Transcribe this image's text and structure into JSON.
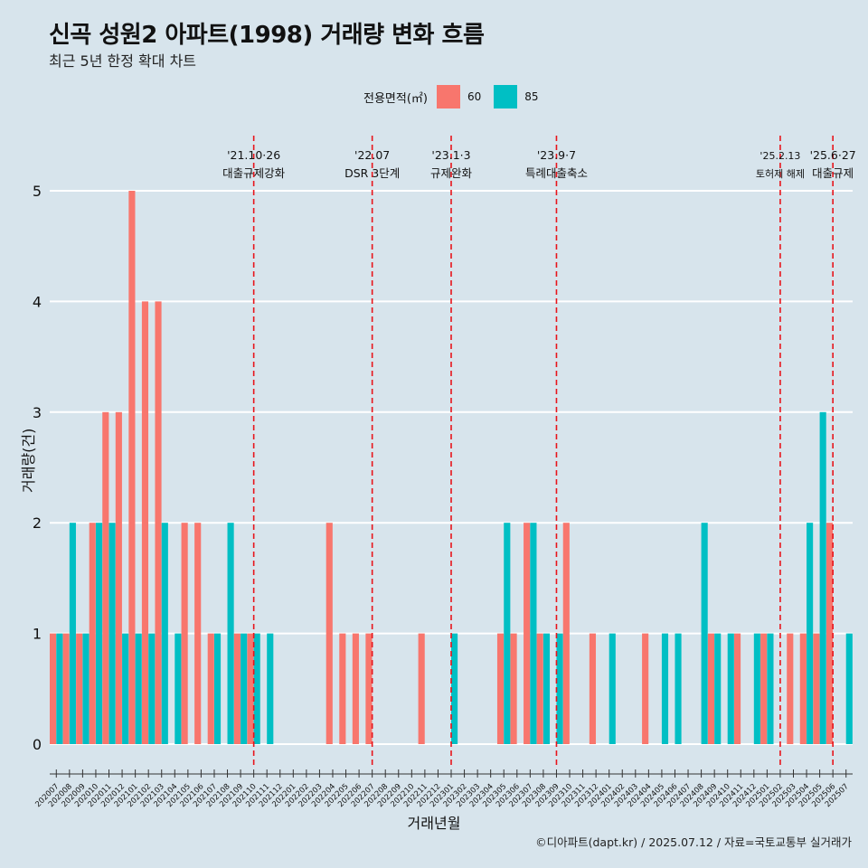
{
  "title": "신곡 성원2 아파트(1998) 거래량 변화 흐름",
  "subtitle": "최근 5년 한정 확대 차트",
  "legend": {
    "title": "전용면적(㎡)",
    "items": [
      {
        "label": "60",
        "color": "#f8766d"
      },
      {
        "label": "85",
        "color": "#00bfc4"
      }
    ]
  },
  "caption": "©디아파트(dapt.kr) / 2025.07.12 / 자료=국토교통부 실거래가",
  "chart_data": {
    "type": "bar",
    "xlabel": "거래년월",
    "ylabel": "거래량(건)",
    "ylim": [
      0,
      5
    ],
    "yticks": [
      0,
      1,
      2,
      3,
      4,
      5
    ],
    "categories": [
      "202007",
      "202008",
      "202009",
      "202010",
      "202011",
      "202012",
      "202101",
      "202102",
      "202103",
      "202104",
      "202105",
      "202106",
      "202107",
      "202108",
      "202109",
      "202110",
      "202111",
      "202112",
      "202201",
      "202202",
      "202203",
      "202204",
      "202205",
      "202206",
      "202207",
      "202208",
      "202209",
      "202210",
      "202211",
      "202212",
      "202301",
      "202302",
      "202303",
      "202304",
      "202305",
      "202306",
      "202307",
      "202308",
      "202309",
      "202310",
      "202311",
      "202312",
      "202401",
      "202402",
      "202403",
      "202404",
      "202405",
      "202406",
      "202407",
      "202408",
      "202409",
      "202410",
      "202411",
      "202412",
      "202501",
      "202502",
      "202503",
      "202504",
      "202505",
      "202506",
      "202507"
    ],
    "series": [
      {
        "name": "60",
        "color": "#f8766d",
        "values": [
          1,
          1,
          1,
          2,
          3,
          3,
          5,
          4,
          4,
          0,
          2,
          2,
          1,
          0,
          1,
          1,
          0,
          0,
          0,
          0,
          0,
          2,
          1,
          1,
          1,
          0,
          0,
          0,
          1,
          0,
          0,
          0,
          0,
          0,
          1,
          1,
          2,
          1,
          0,
          2,
          0,
          1,
          0,
          0,
          0,
          1,
          0,
          0,
          0,
          0,
          1,
          0,
          1,
          0,
          1,
          0,
          1,
          1,
          1,
          2,
          0
        ]
      },
      {
        "name": "85",
        "color": "#00bfc4",
        "values": [
          1,
          2,
          1,
          2,
          2,
          1,
          1,
          1,
          2,
          1,
          0,
          0,
          1,
          2,
          1,
          1,
          1,
          0,
          0,
          0,
          0,
          0,
          0,
          0,
          0,
          0,
          0,
          0,
          0,
          0,
          1,
          0,
          0,
          0,
          2,
          0,
          2,
          1,
          1,
          0,
          0,
          0,
          1,
          0,
          0,
          0,
          1,
          1,
          0,
          2,
          1,
          1,
          0,
          1,
          1,
          0,
          0,
          2,
          3,
          0,
          1
        ]
      }
    ],
    "events": [
      {
        "at": "202110",
        "label1": "'21.10·26",
        "label2": "대출규제강화"
      },
      {
        "at": "202207",
        "label1": "'22.07",
        "label2": "DSR 3단계"
      },
      {
        "at": "202301",
        "label1": "'23.1·3",
        "label2": "규제완화"
      },
      {
        "at": "202309",
        "label1": "'23.9·7",
        "label2": "특례대출축소"
      },
      {
        "at": "202502",
        "label1": "'25.2.13",
        "label2": "토허제 해제"
      },
      {
        "at": "202506",
        "label1": "'25.6·27",
        "label2": "대출규제"
      }
    ]
  }
}
